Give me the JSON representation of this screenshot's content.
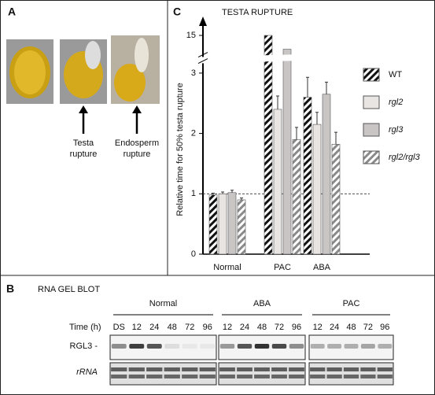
{
  "panel_a": {
    "label": "A",
    "testa_label": [
      "Testa",
      "rupture"
    ],
    "endosperm_label": [
      "Endosperm",
      "rupture"
    ]
  },
  "chart_data": {
    "type": "bar",
    "panel_label": "C",
    "title": "TESTA RUPTURE",
    "y_label": "Relative time for 50% testa rupture",
    "categories": [
      "Normal",
      "PAC",
      "ABA"
    ],
    "series": [
      {
        "name": "WT",
        "color": "#111111",
        "hatch": true,
        "values": [
          0.98,
          15,
          2.6
        ],
        "errors": [
          0.03,
          null,
          0.33
        ]
      },
      {
        "name": "rgl2",
        "color": "#e9e5e3",
        "hatch": false,
        "values": [
          1.0,
          2.4,
          2.15
        ],
        "errors": [
          0.03,
          0.22,
          0.2
        ]
      },
      {
        "name": "rgl3",
        "color": "#c9c5c5",
        "hatch": false,
        "values": [
          1.02,
          14,
          2.65
        ],
        "errors": [
          0.04,
          null,
          0.2
        ]
      },
      {
        "name": "rgl2/rgl3",
        "color": "#8a8a8a",
        "hatch": true,
        "values": [
          0.9,
          1.9,
          1.82
        ],
        "errors": [
          0.03,
          0.2,
          0.2
        ]
      }
    ],
    "ylim": [
      0,
      15
    ],
    "yticks": [
      0,
      1,
      2,
      3,
      15
    ],
    "y_break": [
      3.2,
      13.6
    ],
    "reference_line": 1
  },
  "panel_b": {
    "label": "B",
    "title": "RNA GEL BLOT",
    "time_label": "Time (h)",
    "groups": [
      {
        "name": "Normal",
        "lanes": [
          "DS",
          "12",
          "24",
          "48",
          "72",
          "96"
        ]
      },
      {
        "name": "ABA",
        "lanes": [
          "12",
          "24",
          "48",
          "72",
          "96"
        ]
      },
      {
        "name": "PAC",
        "lanes": [
          "12",
          "24",
          "48",
          "72",
          "96"
        ]
      }
    ],
    "rows": [
      "RGL3 -",
      "rRNA"
    ]
  }
}
